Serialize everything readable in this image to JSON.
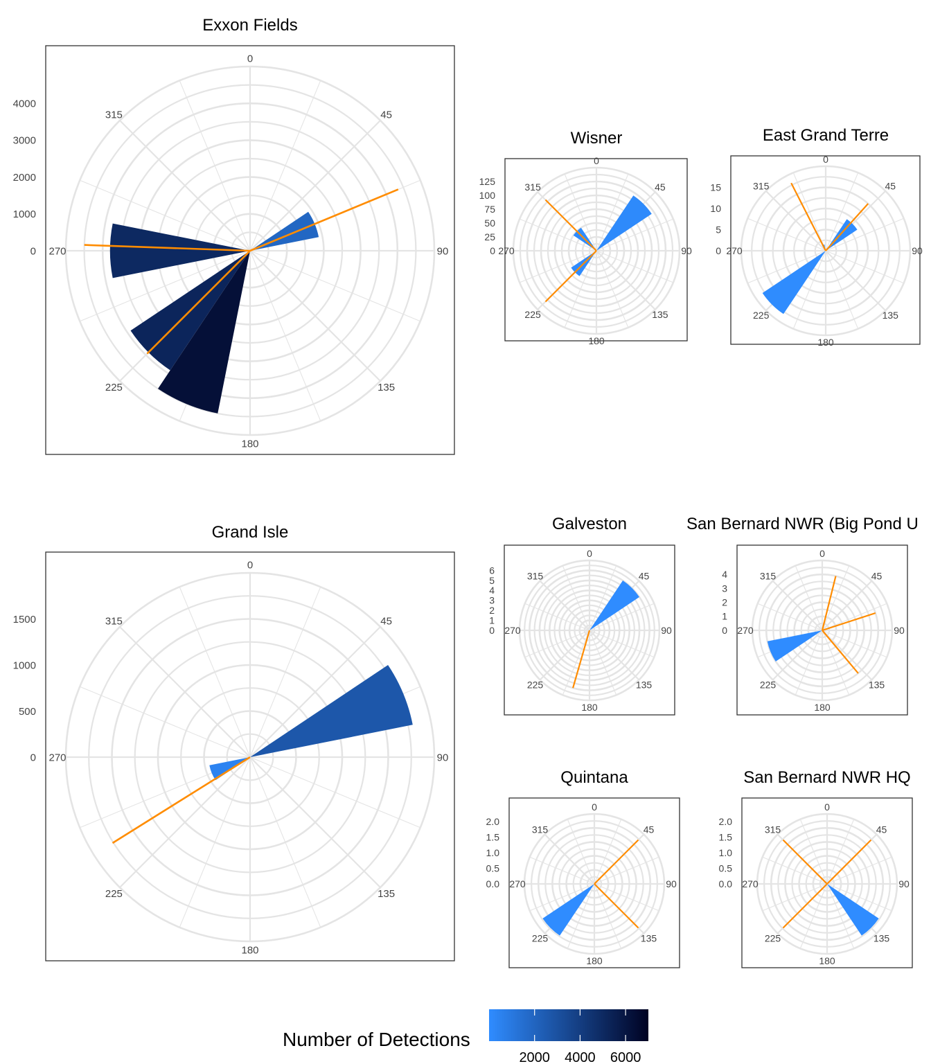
{
  "chart_data": [
    {
      "type": "polar-bar",
      "title": "Exxon Fields",
      "direction_ticks": [
        "0",
        "45",
        "90",
        "135",
        "180",
        "225",
        "270",
        "315"
      ],
      "radial_ticks": [
        "0",
        "1000",
        "2000",
        "3000",
        "4000"
      ],
      "radial_max": 5000,
      "bars": [
        {
          "direction": 67.5,
          "value": 1900,
          "detections": 1900
        },
        {
          "direction": 270,
          "value": 3800,
          "detections": 5000
        },
        {
          "direction": 225,
          "value": 3900,
          "detections": 5200
        },
        {
          "direction": 202.5,
          "value": 4500,
          "detections": 6300
        }
      ],
      "mean_directions": [
        {
          "direction": 67.5,
          "length": 4350
        },
        {
          "direction": 272,
          "length": 4500
        },
        {
          "direction": 225,
          "length": 3950
        }
      ]
    },
    {
      "type": "polar-bar",
      "title": "Wisner",
      "direction_ticks": [
        "0",
        "45",
        "90",
        "135",
        "180",
        "225",
        "270",
        "315"
      ],
      "radial_ticks": [
        "0",
        "25",
        "50",
        "75",
        "100",
        "125"
      ],
      "radial_max": 150,
      "bars": [
        {
          "direction": 315,
          "value": 50,
          "detections": 50
        },
        {
          "direction": 45,
          "value": 120,
          "detections": 120
        },
        {
          "direction": 225,
          "value": 55,
          "detections": 55
        }
      ],
      "mean_directions": [
        {
          "direction": 315,
          "length": 130
        },
        {
          "direction": 225,
          "length": 130
        }
      ]
    },
    {
      "type": "polar-bar",
      "title": "East Grand Terre",
      "direction_ticks": [
        "0",
        "45",
        "90",
        "135",
        "180",
        "225",
        "270",
        "315"
      ],
      "radial_ticks": [
        "0",
        "5",
        "10",
        "15"
      ],
      "radial_max": 20,
      "bars": [
        {
          "direction": 45,
          "value": 9,
          "detections": 9
        },
        {
          "direction": 225,
          "value": 18,
          "detections": 18
        },
        {
          "direction": 337.5,
          "value": 1.5,
          "detections": 1
        }
      ],
      "mean_directions": [
        {
          "direction": 42,
          "length": 15
        },
        {
          "direction": 333,
          "length": 18
        }
      ]
    },
    {
      "type": "polar-bar",
      "title": "Grand Isle",
      "direction_ticks": [
        "0",
        "45",
        "90",
        "135",
        "180",
        "225",
        "270",
        "315"
      ],
      "radial_ticks": [
        "0",
        "500",
        "1000",
        "1500"
      ],
      "radial_max": 2000,
      "bars": [
        {
          "direction": 67.5,
          "value": 1800,
          "detections": 2700
        },
        {
          "direction": 247.5,
          "value": 450,
          "detections": 450
        }
      ],
      "mean_directions": [
        {
          "direction": 238,
          "length": 1760
        }
      ]
    },
    {
      "type": "polar-bar",
      "title": "Galveston",
      "direction_ticks": [
        "0",
        "45",
        "90",
        "135",
        "180",
        "225",
        "270",
        "315"
      ],
      "radial_ticks": [
        "0",
        "1",
        "2",
        "3",
        "4",
        "5",
        "6"
      ],
      "radial_max": 7,
      "bars": [
        {
          "direction": 45,
          "value": 6,
          "detections": 6
        }
      ],
      "mean_directions": [
        {
          "direction": 196,
          "length": 6
        }
      ]
    },
    {
      "type": "polar-bar",
      "title": "San Bernard NWR (Big Pond U",
      "direction_ticks": [
        "0",
        "45",
        "90",
        "135",
        "180",
        "225",
        "270",
        "315"
      ],
      "radial_ticks": [
        "0",
        "1",
        "2",
        "3",
        "4"
      ],
      "radial_max": 5,
      "bars": [
        {
          "direction": 247.5,
          "value": 4,
          "detections": 4
        }
      ],
      "mean_directions": [
        {
          "direction": 14,
          "length": 4
        },
        {
          "direction": 72,
          "length": 4
        },
        {
          "direction": 140,
          "length": 4
        }
      ]
    },
    {
      "type": "polar-bar",
      "title": "Quintana",
      "direction_ticks": [
        "0",
        "45",
        "90",
        "135",
        "180",
        "225",
        "270",
        "315"
      ],
      "radial_ticks": [
        "0.0",
        "0.5",
        "1.0",
        "1.5",
        "2.0"
      ],
      "radial_max": 2.25,
      "bars": [
        {
          "direction": 225,
          "value": 2,
          "detections": 2
        }
      ],
      "mean_directions": [
        {
          "direction": 45,
          "length": 2
        },
        {
          "direction": 135,
          "length": 2
        }
      ]
    },
    {
      "type": "polar-bar",
      "title": "San Bernard NWR HQ",
      "direction_ticks": [
        "0",
        "45",
        "90",
        "135",
        "180",
        "225",
        "270",
        "315"
      ],
      "radial_ticks": [
        "0.0",
        "0.5",
        "1.0",
        "1.5",
        "2.0"
      ],
      "radial_max": 2.25,
      "bars": [
        {
          "direction": 135,
          "value": 2,
          "detections": 2
        }
      ],
      "mean_directions": [
        {
          "direction": 315,
          "length": 2
        },
        {
          "direction": 45,
          "length": 2
        },
        {
          "direction": 225,
          "length": 2
        }
      ]
    }
  ],
  "legend": {
    "title": "Number of Detections",
    "ticks": [
      "2000",
      "4000",
      "6000"
    ],
    "tick_values": [
      2000,
      4000,
      6000
    ],
    "min": 1,
    "max": 7000,
    "color_low": "#2f8cff",
    "color_high": "#000222"
  },
  "colors": {
    "mean_line": "#ff8c00",
    "grid": "#e4e4e4",
    "frame": "#333333"
  }
}
